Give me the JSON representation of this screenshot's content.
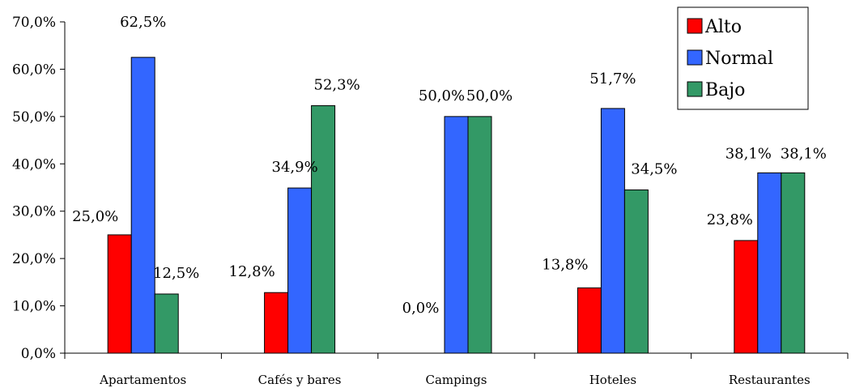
{
  "chart_data": {
    "type": "bar",
    "categories": [
      "Apartamentos",
      "Cafés y bares",
      "Campings",
      "Hoteles",
      "Restaurantes"
    ],
    "series": [
      {
        "name": "Alto",
        "color": "#ff0000",
        "values": [
          25.0,
          12.8,
          0.0,
          13.8,
          23.8
        ],
        "labels": [
          "25,0%",
          "12,8%",
          "0,0%",
          "13,8%",
          "23,8%"
        ]
      },
      {
        "name": "Normal",
        "color": "#3366ff",
        "values": [
          62.5,
          34.9,
          50.0,
          51.7,
          38.1
        ],
        "labels": [
          "62,5%",
          "34,9%",
          "50,0%",
          "51,7%",
          "38,1%"
        ]
      },
      {
        "name": "Bajo",
        "color": "#339966",
        "values": [
          12.5,
          52.3,
          50.0,
          34.5,
          38.1
        ],
        "labels": [
          "12,5%",
          "52,3%",
          "50,0%",
          "34,5%",
          "38,1%"
        ]
      }
    ],
    "ylim": [
      0,
      70
    ],
    "yticks": [
      0,
      10,
      20,
      30,
      40,
      50,
      60,
      70
    ],
    "ytick_labels": [
      "0,0%",
      "10,0%",
      "20,0%",
      "30,0%",
      "40,0%",
      "50,0%",
      "60,0%",
      "70,0%"
    ],
    "grid": false,
    "legend_position": "top-right"
  }
}
